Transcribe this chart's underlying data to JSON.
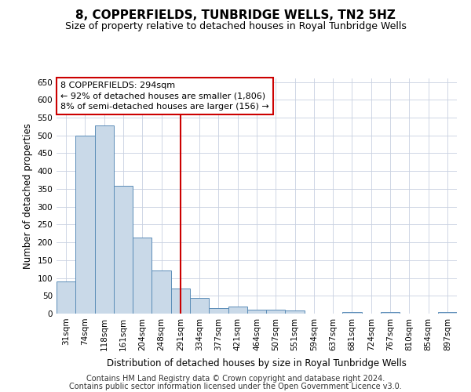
{
  "title": "8, COPPERFIELDS, TUNBRIDGE WELLS, TN2 5HZ",
  "subtitle": "Size of property relative to detached houses in Royal Tunbridge Wells",
  "xlabel": "Distribution of detached houses by size in Royal Tunbridge Wells",
  "ylabel": "Number of detached properties",
  "footer_line1": "Contains HM Land Registry data © Crown copyright and database right 2024.",
  "footer_line2": "Contains public sector information licensed under the Open Government Licence v3.0.",
  "categories": [
    "31sqm",
    "74sqm",
    "118sqm",
    "161sqm",
    "204sqm",
    "248sqm",
    "291sqm",
    "334sqm",
    "377sqm",
    "421sqm",
    "464sqm",
    "507sqm",
    "551sqm",
    "594sqm",
    "637sqm",
    "681sqm",
    "724sqm",
    "767sqm",
    "810sqm",
    "854sqm",
    "897sqm"
  ],
  "values": [
    90,
    500,
    527,
    358,
    213,
    122,
    70,
    43,
    16,
    19,
    10,
    11,
    8,
    0,
    0,
    5,
    0,
    4,
    0,
    0,
    4
  ],
  "bar_color": "#c9d9e8",
  "bar_edge_color": "#5b8db8",
  "vline_index": 6,
  "vline_color": "#cc0000",
  "annotation_line1": "8 COPPERFIELDS: 294sqm",
  "annotation_line2": "← 92% of detached houses are smaller (1,806)",
  "annotation_line3": "8% of semi-detached houses are larger (156) →",
  "annotation_box_color": "#ffffff",
  "annotation_box_edge_color": "#cc0000",
  "ylim": [
    0,
    660
  ],
  "yticks": [
    0,
    50,
    100,
    150,
    200,
    250,
    300,
    350,
    400,
    450,
    500,
    550,
    600,
    650
  ],
  "bg_color": "#ffffff",
  "grid_color": "#c8d0e0",
  "title_fontsize": 11,
  "subtitle_fontsize": 9,
  "annotation_fontsize": 8,
  "tick_fontsize": 7.5,
  "axis_label_fontsize": 8.5,
  "footer_fontsize": 7
}
